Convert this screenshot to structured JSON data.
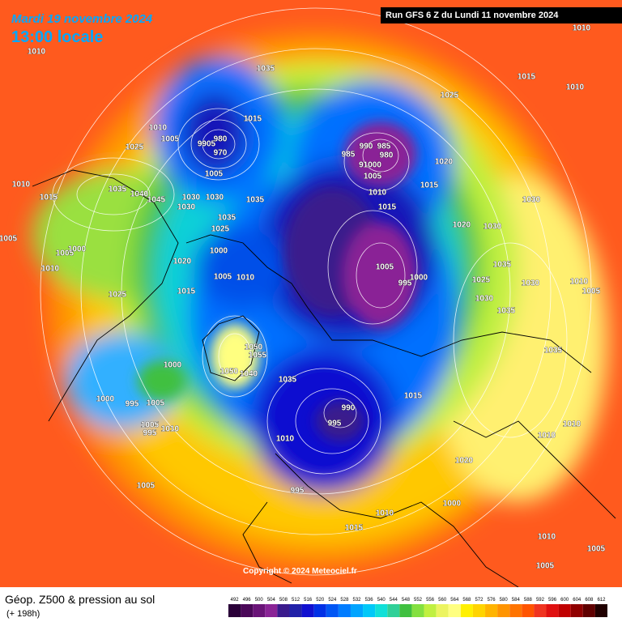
{
  "header": {
    "date": "Mardi 19 novembre 2024",
    "time": "13:00 locale",
    "run": "Run GFS 6 Z du Lundi 11 novembre 2024"
  },
  "footer": {
    "title": "Géop. Z500 & pression au sol",
    "lead": "(+ 198h)",
    "copyright": "Copyright © 2024 Meteociel.fr"
  },
  "legend": {
    "ticks": [
      492,
      496,
      500,
      504,
      508,
      512,
      516,
      520,
      524,
      528,
      532,
      536,
      540,
      544,
      548,
      552,
      556,
      560,
      564,
      568,
      572,
      576,
      580,
      584,
      588,
      592,
      596,
      600,
      604,
      608,
      612
    ],
    "colors": [
      "#2a0038",
      "#4a0858",
      "#6a1478",
      "#8a2496",
      "#3a1a8c",
      "#2020a8",
      "#1010d0",
      "#0030e6",
      "#0056f4",
      "#007cff",
      "#00a4ff",
      "#00c8f8",
      "#10e0d8",
      "#30d098",
      "#40c040",
      "#84e040",
      "#c0f040",
      "#ecf460",
      "#ffff80",
      "#fff000",
      "#ffd400",
      "#ffb400",
      "#ff9400",
      "#ff7400",
      "#ff5400",
      "#f03420",
      "#e01010",
      "#c00000",
      "#900000",
      "#600000",
      "#200000"
    ]
  },
  "pressure_labels": [
    "1010",
    "1035",
    "1015",
    "1010",
    "1005",
    "1025",
    "1025",
    "1015",
    "1010",
    "1010",
    "985",
    "990",
    "980",
    "985",
    "91000",
    "1005",
    "1010",
    "1015",
    "1010",
    "1015",
    "1035",
    "1040",
    "1045",
    "1030",
    "1035",
    "1030",
    "1035",
    "1025",
    "1020",
    "1000",
    "1005",
    "1005",
    "1005",
    "1000",
    "1010",
    "1025",
    "1015",
    "1010",
    "1005",
    "995",
    "1000",
    "1020",
    "1015",
    "1020",
    "1030",
    "1030",
    "1035",
    "1025",
    "1030",
    "1035",
    "1030",
    "1010",
    "1005",
    "1035",
    "1015",
    "1010",
    "1010",
    "1020",
    "1000",
    "1010",
    "1015",
    "1010",
    "1005",
    "1005",
    "995",
    "995",
    "990",
    "1010",
    "1035",
    "1050",
    "1055",
    "1050",
    "1040",
    "1000",
    "1000",
    "995",
    "1005",
    "1005",
    "995",
    "1010",
    "1005",
    "980",
    "9905",
    "970",
    "1005",
    "1030"
  ]
}
